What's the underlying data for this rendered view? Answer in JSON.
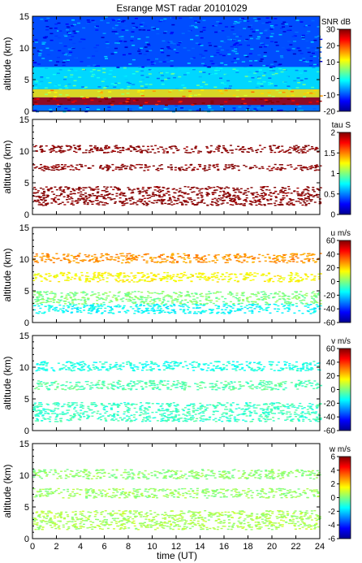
{
  "title": "Esrange MST radar 20101029",
  "xlabel": "time (UT)",
  "chart_data": [
    {
      "type": "heatmap",
      "quantity": "SNR",
      "ylabel": "altitude (km)",
      "colorbar_label": "SNR dB",
      "x": [
        0,
        24
      ],
      "ylim": [
        0,
        15
      ],
      "xticks": [
        "0",
        "2",
        "4",
        "6",
        "8",
        "10",
        "12",
        "14",
        "16",
        "18",
        "20",
        "22",
        "24"
      ],
      "yticks": [
        "0",
        "5",
        "10",
        "15"
      ],
      "clim": [
        -20,
        30
      ],
      "cbar_ticks": [
        "-20",
        "-10",
        "0",
        "10",
        "20",
        "30"
      ],
      "grid": false,
      "layers": [
        {
          "alt_from": 0.0,
          "alt_to": 1.0,
          "value": -8
        },
        {
          "alt_from": 1.0,
          "alt_to": 2.2,
          "value": 28
        },
        {
          "alt_from": 2.2,
          "alt_to": 3.5,
          "value": 12
        },
        {
          "alt_from": 3.5,
          "alt_to": 7.0,
          "value": -2
        },
        {
          "alt_from": 7.0,
          "alt_to": 15.0,
          "value": -10
        }
      ]
    },
    {
      "type": "heatmap",
      "quantity": "tau",
      "ylabel": "altitude (km)",
      "colorbar_label": "tau S",
      "x": [
        0,
        24
      ],
      "ylim": [
        0,
        15
      ],
      "xticks": [
        "0",
        "2",
        "4",
        "6",
        "8",
        "10",
        "12",
        "14",
        "16",
        "18",
        "20",
        "22",
        "24"
      ],
      "yticks": [
        "0",
        "5",
        "10",
        "15"
      ],
      "clim": [
        0,
        2
      ],
      "cbar_ticks": [
        "0",
        "0.5",
        "1",
        "1.5",
        "2"
      ],
      "grid": false,
      "layers": [
        {
          "alt_from": 1.5,
          "alt_to": 4.5,
          "value": 2
        },
        {
          "alt_from": 7.0,
          "alt_to": 8.0,
          "value": 2
        },
        {
          "alt_from": 9.8,
          "alt_to": 11.0,
          "value": 2
        }
      ]
    },
    {
      "type": "heatmap",
      "quantity": "u",
      "ylabel": "altitude (km)",
      "colorbar_label": "u m/s",
      "x": [
        0,
        24
      ],
      "ylim": [
        0,
        15
      ],
      "xticks": [
        "0",
        "2",
        "4",
        "6",
        "8",
        "10",
        "12",
        "14",
        "16",
        "18",
        "20",
        "22",
        "24"
      ],
      "yticks": [
        "0",
        "5",
        "10",
        "15"
      ],
      "clim": [
        -60,
        60
      ],
      "cbar_ticks": [
        "-60",
        "-40",
        "-20",
        "0",
        "20",
        "40",
        "60"
      ],
      "grid": false,
      "layers": [
        {
          "alt_from": 1.5,
          "alt_to": 3.0,
          "value": -15
        },
        {
          "alt_from": 3.0,
          "alt_to": 5.0,
          "value": 0
        },
        {
          "alt_from": 6.5,
          "alt_to": 8.0,
          "value": 15
        },
        {
          "alt_from": 9.5,
          "alt_to": 11.0,
          "value": 28
        }
      ]
    },
    {
      "type": "heatmap",
      "quantity": "v",
      "ylabel": "altitude (km)",
      "colorbar_label": "v m/s",
      "x": [
        0,
        24
      ],
      "ylim": [
        0,
        15
      ],
      "xticks": [
        "0",
        "2",
        "4",
        "6",
        "8",
        "10",
        "12",
        "14",
        "16",
        "18",
        "20",
        "22",
        "24"
      ],
      "yticks": [
        "0",
        "5",
        "10",
        "15"
      ],
      "clim": [
        -60,
        60
      ],
      "cbar_ticks": [
        "-60",
        "-40",
        "-20",
        "0",
        "20",
        "40",
        "60"
      ],
      "grid": false,
      "layers": [
        {
          "alt_from": 1.5,
          "alt_to": 4.5,
          "value": -8
        },
        {
          "alt_from": 6.5,
          "alt_to": 8.0,
          "value": -5
        },
        {
          "alt_from": 9.5,
          "alt_to": 11.0,
          "value": -12
        }
      ]
    },
    {
      "type": "heatmap",
      "quantity": "w",
      "ylabel": "altitude (km)",
      "colorbar_label": "w m/s",
      "x": [
        0,
        24
      ],
      "ylim": [
        0,
        15
      ],
      "xticks": [
        "0",
        "2",
        "4",
        "6",
        "8",
        "10",
        "12",
        "14",
        "16",
        "18",
        "20",
        "22",
        "24"
      ],
      "yticks": [
        "0",
        "5",
        "10",
        "15"
      ],
      "clim": [
        -6,
        6
      ],
      "cbar_ticks": [
        "-6",
        "-4",
        "-2",
        "0",
        "2",
        "4",
        "6"
      ],
      "grid": false,
      "layers": [
        {
          "alt_from": 1.5,
          "alt_to": 4.5,
          "value": 0.5
        },
        {
          "alt_from": 6.5,
          "alt_to": 8.0,
          "value": 0.3
        },
        {
          "alt_from": 9.5,
          "alt_to": 11.0,
          "value": 0.2
        }
      ]
    }
  ]
}
